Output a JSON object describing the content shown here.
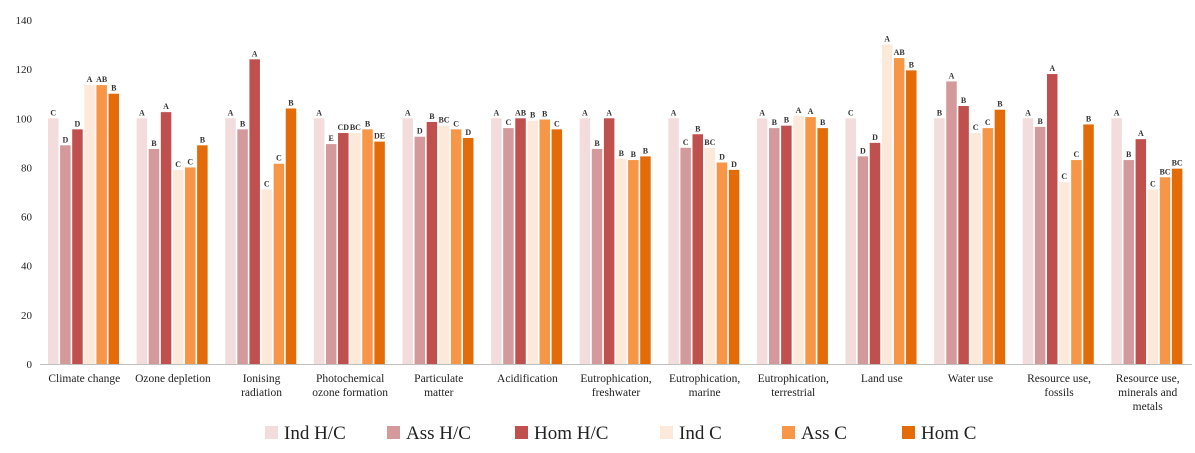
{
  "chart_data": {
    "type": "bar",
    "title": "",
    "xlabel": "",
    "ylabel": "",
    "ylim": [
      0,
      140
    ],
    "yticks": [
      0,
      20,
      40,
      60,
      80,
      100,
      120,
      140
    ],
    "grid": false,
    "legend_position": "bottom",
    "categories": [
      [
        "Climate change"
      ],
      [
        "Ozone depletion"
      ],
      [
        "Ionising",
        "radiation"
      ],
      [
        "Photochemical",
        "ozone formation"
      ],
      [
        "Particulate",
        "matter"
      ],
      [
        "Acidification"
      ],
      [
        "Eutrophication,",
        "freshwater"
      ],
      [
        "Eutrophication,",
        "marine"
      ],
      [
        "Eutrophication,",
        "terrestrial"
      ],
      [
        "Land use"
      ],
      [
        "Water use"
      ],
      [
        "Resource use,",
        "fossils"
      ],
      [
        "Resource use,",
        "minerals and",
        "metals"
      ]
    ],
    "series": [
      {
        "name": "Ind H/C",
        "color": "#f3dcdc",
        "values": [
          100,
          100,
          100,
          100,
          100,
          100,
          100,
          100,
          100,
          100,
          100,
          100,
          100
        ],
        "labels": [
          "C",
          "A",
          "A",
          "A",
          "A",
          "A",
          "A",
          "A",
          "A",
          "C",
          "B",
          "A",
          "A"
        ]
      },
      {
        "name": "Ass H/C",
        "color": "#d4999a",
        "values": [
          89,
          87.5,
          95.5,
          89.5,
          92.5,
          96,
          87.5,
          88,
          96,
          84.5,
          115,
          96.5,
          83
        ],
        "labels": [
          "D",
          "B",
          "B",
          "E",
          "D",
          "C",
          "B",
          "C",
          "B",
          "D",
          "A",
          "B",
          "B"
        ]
      },
      {
        "name": "Hom H/C",
        "color": "#c0504d",
        "values": [
          95.5,
          102.5,
          124,
          94,
          98.5,
          100,
          100,
          93.5,
          97,
          90,
          105,
          118,
          91.5
        ],
        "labels": [
          "D",
          "A",
          "A",
          "CD",
          "B",
          "AB",
          "A",
          "B",
          "B",
          "D",
          "B",
          "A",
          "A"
        ]
      },
      {
        "name": "Ind C",
        "color": "#fde9d9",
        "values": [
          113.5,
          79,
          71,
          94,
          97,
          99,
          83.5,
          88,
          101,
          130,
          94,
          74,
          71
        ],
        "labels": [
          "A",
          "C",
          "C",
          "BC",
          "BC",
          "B",
          "B",
          "BC",
          "A",
          "A",
          "C",
          "C",
          "C"
        ]
      },
      {
        "name": "Ass C",
        "color": "#f79646",
        "values": [
          113.5,
          80,
          81.5,
          95.5,
          95.5,
          99.5,
          83,
          82,
          100.5,
          124.5,
          96,
          83,
          76
        ],
        "labels": [
          "AB",
          "C",
          "C",
          "B",
          "C",
          "B",
          "B",
          "D",
          "A",
          "AB",
          "C",
          "C",
          "BC"
        ]
      },
      {
        "name": "Hom C",
        "color": "#e36c09",
        "values": [
          110,
          89,
          104,
          90.5,
          92,
          95.5,
          84.5,
          79,
          96,
          119.5,
          103.5,
          97.5,
          79.5
        ],
        "labels": [
          "B",
          "B",
          "B",
          "DE",
          "D",
          "C",
          "B",
          "D",
          "B",
          "B",
          "B",
          "B",
          "BC"
        ]
      }
    ]
  }
}
